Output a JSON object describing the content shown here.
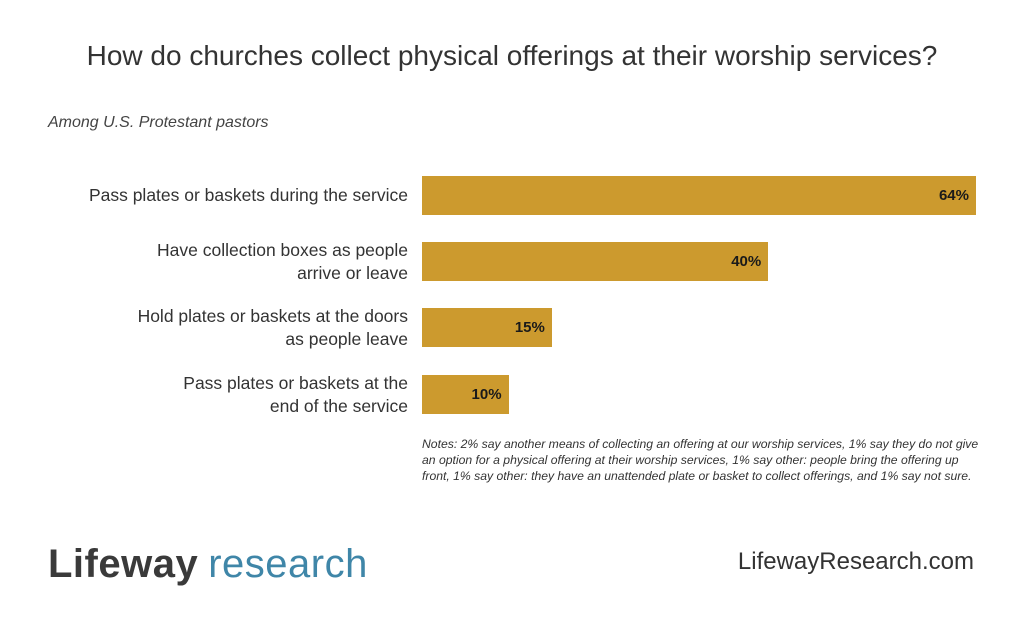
{
  "title": "How do churches collect physical offerings at their worship services?",
  "subtitle": "Among U.S. Protestant pastors",
  "notes": "Notes: 2% say another means of collecting an offering at our worship services, 1% say they do not give an option for a physical offering at their worship services, 1% say other: people bring the offering up front, 1% say other: they have an unattended plate or basket to collect offerings, and 1% say not sure.",
  "footer": {
    "logo_part1": "Lifeway",
    "logo_part2": "research",
    "website": "LifewayResearch.com"
  },
  "colors": {
    "bar": "#cc9a2e",
    "logo_dark": "#3a3a3a",
    "logo_accent": "#3f86a8"
  },
  "chart_data": {
    "type": "bar",
    "orientation": "horizontal",
    "categories": [
      "Pass plates or baskets during the service",
      "Have collection boxes as people arrive or leave",
      "Hold plates or baskets at the doors as people leave",
      "Pass plates or baskets at the end of the service"
    ],
    "category_lines": [
      [
        "Pass plates or baskets during the service"
      ],
      [
        "Have collection boxes as people",
        "arrive or leave"
      ],
      [
        "Hold plates or baskets at the doors",
        "as people leave"
      ],
      [
        "Pass plates or baskets at the",
        "end of the service"
      ]
    ],
    "values": [
      64,
      40,
      15,
      10
    ],
    "value_labels": [
      "64%",
      "40%",
      "15%",
      "10%"
    ],
    "unit": "%",
    "xlim": [
      0,
      64
    ],
    "grid": false,
    "legend": "none"
  }
}
